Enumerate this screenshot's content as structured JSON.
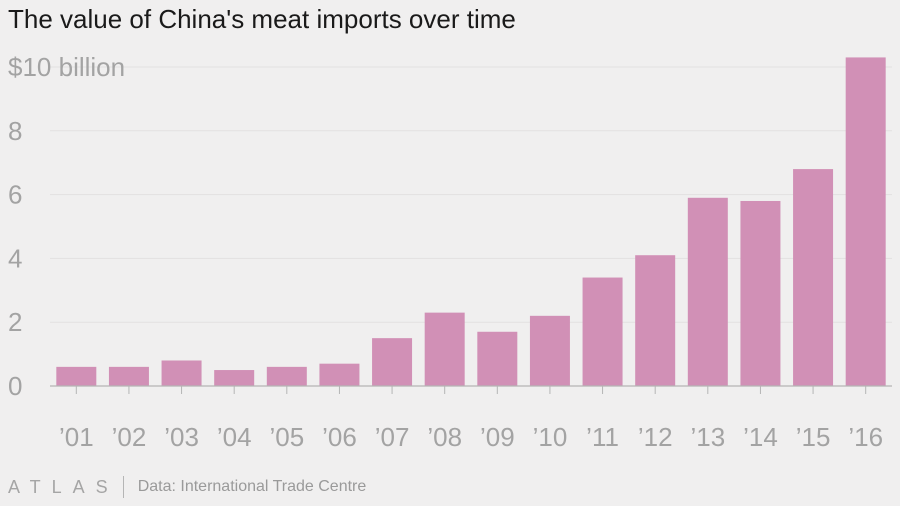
{
  "chart_data": {
    "type": "bar",
    "title": "The value of China's meat imports over time",
    "categories": [
      "’01",
      "’02",
      "’03",
      "’04",
      "’05",
      "’06",
      "’07",
      "’08",
      "’09",
      "’10",
      "’11",
      "’12",
      "’13",
      "’14",
      "’15",
      "’16"
    ],
    "values": [
      0.6,
      0.6,
      0.8,
      0.5,
      0.6,
      0.7,
      1.5,
      2.3,
      1.7,
      2.2,
      3.4,
      4.1,
      5.9,
      5.8,
      6.8,
      10.3
    ],
    "y_ticks": [
      {
        "value": 0,
        "label": "0"
      },
      {
        "value": 2,
        "label": "2"
      },
      {
        "value": 4,
        "label": "4"
      },
      {
        "value": 6,
        "label": "6"
      },
      {
        "value": 8,
        "label": "8"
      },
      {
        "value": 10,
        "label": "$10 billion"
      }
    ],
    "ylim": [
      0,
      10.3
    ],
    "xlabel": "",
    "ylabel": "",
    "grid": true,
    "bar_color": "#d190b6",
    "gridline_color": "#e2e1e1",
    "axis_color": "#b5b5b5"
  },
  "footer": {
    "logo": "ATLAS",
    "source": "Data: International Trade Centre"
  }
}
